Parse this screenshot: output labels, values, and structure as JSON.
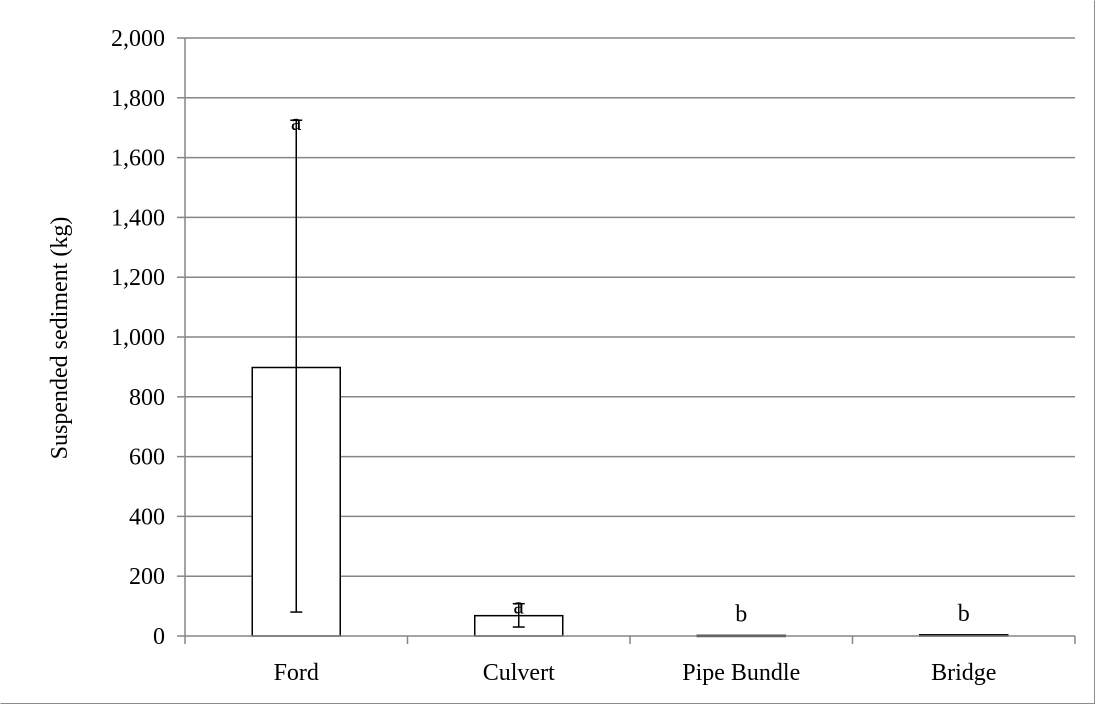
{
  "chart_data": {
    "type": "bar",
    "title": "",
    "xlabel": "",
    "ylabel": "Suspended sediment (kg)",
    "ylim": [
      0,
      2000
    ],
    "yticks": [
      0,
      200,
      400,
      600,
      800,
      1000,
      1200,
      1400,
      1600,
      1800,
      2000
    ],
    "ytick_labels": [
      "0",
      "200",
      "400",
      "600",
      "800",
      "1,000",
      "1,200",
      "1,400",
      "1,600",
      "1,800",
      "2,000"
    ],
    "grid": true,
    "categories": [
      "Ford",
      "Culvert",
      "Pipe Bundle",
      "Bridge"
    ],
    "values": [
      898,
      68,
      2,
      4
    ],
    "error_low": [
      80,
      30,
      2,
      4
    ],
    "error_high": [
      1725,
      108,
      2,
      4
    ],
    "significance_letters": [
      "a",
      "a",
      "b",
      "b"
    ],
    "bar_fill": "#ffffff",
    "bar_stroke": "#000000",
    "grid_color": "#868686"
  }
}
